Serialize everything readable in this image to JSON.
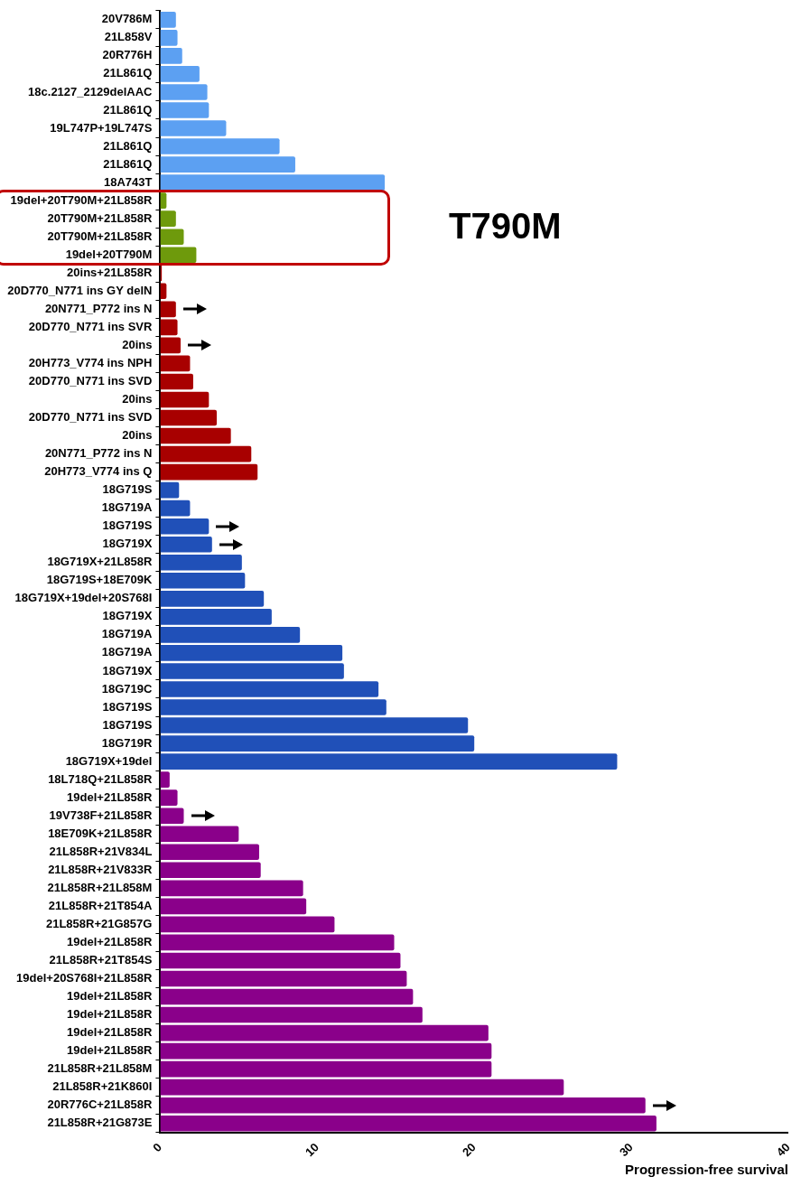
{
  "chart_data": {
    "type": "bar",
    "orientation": "horizontal",
    "xlabel": "Progression-free survival",
    "annotations": [
      "T790M"
    ],
    "categories": [
      "20V786M",
      "21L858V",
      "20R776H",
      "21L861Q",
      "18c.2127_2129delAAC",
      "21L861Q",
      "19L747P+19L747S",
      "21L861Q",
      "21L861Q",
      "18A743T",
      "19del+20T790M+21L858R",
      "20T790M+21L858R",
      "20T790M+21L858R",
      "19del+20T790M",
      "20ins+21L858R",
      "20D770_N771 ins GY delN",
      "20N771_P772 ins N",
      "20D770_N771 ins SVR",
      "20ins",
      "20H773_V774 ins NPH",
      "20D770_N771 ins SVD",
      "20ins",
      "20D770_N771 ins SVD",
      "20ins",
      "20N771_P772 ins N",
      "20H773_V774 ins Q",
      "18G719S",
      "18G719A",
      "18G719S",
      "18G719X",
      "18G719X+21L858R",
      "18G719S+18E709K",
      "18G719X+19del+20S768I",
      "18G719X",
      "18G719A",
      "18G719A",
      "18G719X",
      "18G719C",
      "18G719S",
      "18G719S",
      "18G719R",
      "18G719X+19del",
      "18L718Q+21L858R",
      "19del+21L858R",
      "19V738F+21L858R",
      "18E709K+21L858R",
      "21L858R+21V834L",
      "21L858R+21V833R",
      "21L858R+21L858M",
      "21L858R+21T854A",
      "21L858R+21G857G",
      "19del+21L858R",
      "21L858R+21T854S",
      "19del+20S768I+21L858R",
      "19del+21L858R",
      "19del+21L858R",
      "19del+21L858R",
      "19del+21L858R",
      "21L858R+21L858M",
      "21L858R+21K860I",
      "20R776C+21L858R",
      "21L858R+21G873E"
    ],
    "values": [
      1.0,
      1.1,
      1.4,
      2.5,
      3.0,
      3.1,
      4.2,
      7.6,
      8.6,
      14.3,
      0.4,
      1.0,
      1.5,
      2.3,
      0.1,
      0.4,
      1.0,
      1.1,
      1.3,
      1.9,
      2.1,
      3.1,
      3.6,
      4.5,
      5.8,
      6.2,
      1.2,
      1.9,
      3.1,
      3.3,
      5.2,
      5.4,
      6.6,
      7.1,
      8.9,
      11.6,
      11.7,
      13.9,
      14.4,
      19.6,
      20.0,
      29.1,
      0.6,
      1.1,
      1.5,
      5.0,
      6.3,
      6.4,
      9.1,
      9.3,
      11.1,
      14.9,
      15.3,
      15.7,
      16.1,
      16.7,
      20.9,
      21.1,
      21.1,
      25.7,
      30.9,
      31.6
    ],
    "colors": [
      "#5ca0f2",
      "#5ca0f2",
      "#5ca0f2",
      "#5ca0f2",
      "#5ca0f2",
      "#5ca0f2",
      "#5ca0f2",
      "#5ca0f2",
      "#5ca0f2",
      "#5ca0f2",
      "#6e9a0c",
      "#6e9a0c",
      "#6e9a0c",
      "#6e9a0c",
      "#a80000",
      "#a80000",
      "#a80000",
      "#a80000",
      "#a80000",
      "#a80000",
      "#a80000",
      "#a80000",
      "#a80000",
      "#a80000",
      "#a80000",
      "#a80000",
      "#2050b8",
      "#2050b8",
      "#2050b8",
      "#2050b8",
      "#2050b8",
      "#2050b8",
      "#2050b8",
      "#2050b8",
      "#2050b8",
      "#2050b8",
      "#2050b8",
      "#2050b8",
      "#2050b8",
      "#2050b8",
      "#2050b8",
      "#2050b8",
      "#8a008a",
      "#8a008a",
      "#8a008a",
      "#8a008a",
      "#8a008a",
      "#8a008a",
      "#8a008a",
      "#8a008a",
      "#8a008a",
      "#8a008a",
      "#8a008a",
      "#8a008a",
      "#8a008a",
      "#8a008a",
      "#8a008a",
      "#8a008a",
      "#8a008a",
      "#8a008a",
      "#8a008a",
      "#8a008a"
    ],
    "xlim": [
      0,
      40
    ],
    "xticks": [
      0,
      10,
      20,
      30,
      40
    ],
    "grid": false,
    "legend": false
  }
}
